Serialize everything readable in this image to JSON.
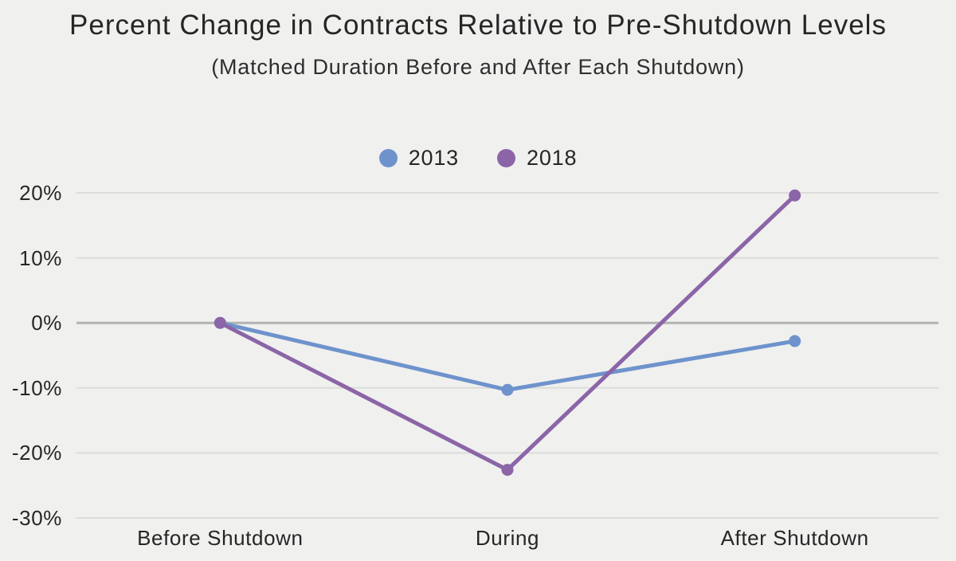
{
  "page": {
    "background": "#f0f0ef"
  },
  "chart_data": {
    "type": "line",
    "title": "Percent Change in Contracts Relative to Pre-Shutdown Levels",
    "subtitle": "(Matched Duration Before and After Each Shutdown)",
    "categories": [
      "Before Shutdown",
      "During",
      "After Shutdown"
    ],
    "series": [
      {
        "name": "2013",
        "color": "#6e93cc",
        "values": [
          0,
          -10.3,
          -2.8
        ]
      },
      {
        "name": "2018",
        "color": "#8b65a7",
        "values": [
          0,
          -22.6,
          19.6
        ]
      }
    ],
    "yticks": [
      {
        "value": 20,
        "label": "20%"
      },
      {
        "value": 10,
        "label": "10%"
      },
      {
        "value": 0,
        "label": "0%"
      },
      {
        "value": -10,
        "label": "-10%"
      },
      {
        "value": -20,
        "label": "-20%"
      },
      {
        "value": -30,
        "label": "-30%"
      }
    ],
    "ylim": [
      -30,
      20
    ],
    "xlabel": "",
    "ylabel": "",
    "grid": "horizontal",
    "legend_position": "top",
    "colors": {
      "gridline": "#dcdcdb",
      "zero_line": "#b3b3b2",
      "text": "#262626",
      "background": "#f0f0ef"
    }
  }
}
